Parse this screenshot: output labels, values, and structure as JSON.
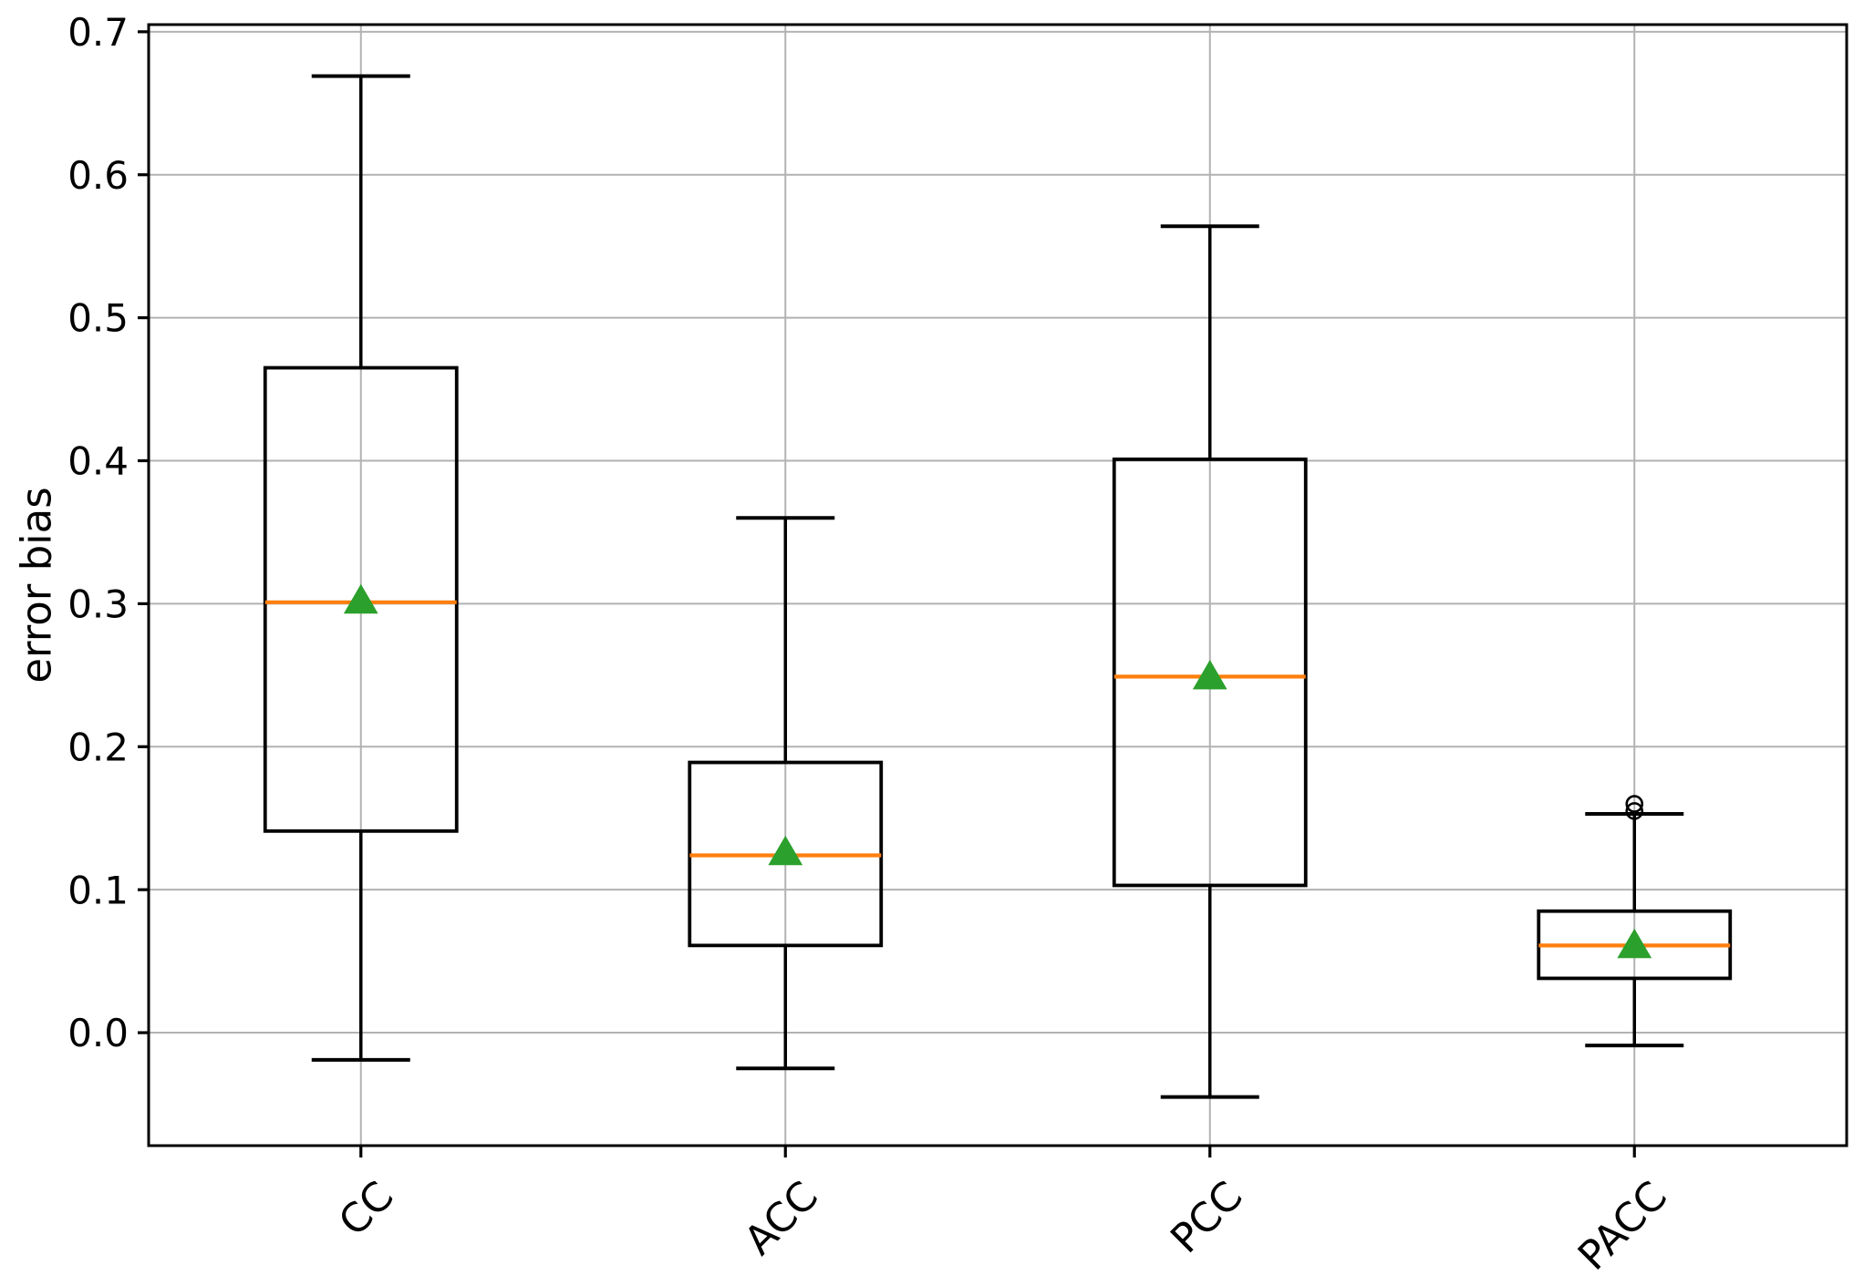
{
  "figure": {
    "ylabel": "error bias"
  },
  "chart_data": {
    "type": "boxplot",
    "title": "",
    "xlabel": "",
    "ylabel": "error bias",
    "categories": [
      "CC",
      "ACC",
      "PCC",
      "PACC"
    ],
    "series": [
      {
        "name": "CC",
        "whislo": -0.019,
        "q1": 0.141,
        "med": 0.301,
        "mean": 0.303,
        "q3": 0.465,
        "whishi": 0.669,
        "fliers": []
      },
      {
        "name": "ACC",
        "whislo": -0.025,
        "q1": 0.061,
        "med": 0.124,
        "mean": 0.127,
        "q3": 0.189,
        "whishi": 0.36,
        "fliers": []
      },
      {
        "name": "PCC",
        "whislo": -0.045,
        "q1": 0.103,
        "med": 0.249,
        "mean": 0.25,
        "q3": 0.401,
        "whishi": 0.564,
        "fliers": []
      },
      {
        "name": "PACC",
        "whislo": -0.009,
        "q1": 0.038,
        "med": 0.061,
        "mean": 0.062,
        "q3": 0.085,
        "whishi": 0.153,
        "fliers": [
          0.16,
          0.155
        ]
      }
    ],
    "yticks": [
      0.0,
      0.1,
      0.2,
      0.3,
      0.4,
      0.5,
      0.6,
      0.7
    ],
    "ytick_labels": [
      "0.0",
      "0.1",
      "0.2",
      "0.3",
      "0.4",
      "0.5",
      "0.6",
      "0.7"
    ],
    "ylim": [
      -0.079,
      0.705
    ],
    "grid": true,
    "legend": null,
    "marker_semantics": {
      "median_line": "median",
      "triangle-up-icon": "mean",
      "circle-icon": "outlier"
    },
    "colors": {
      "median": "#ff7f0e",
      "mean": "#2ca02c",
      "box": "#000000",
      "whisker": "#000000",
      "grid": "#b2b2b2",
      "spine": "#000000",
      "background": "#ffffff"
    }
  }
}
